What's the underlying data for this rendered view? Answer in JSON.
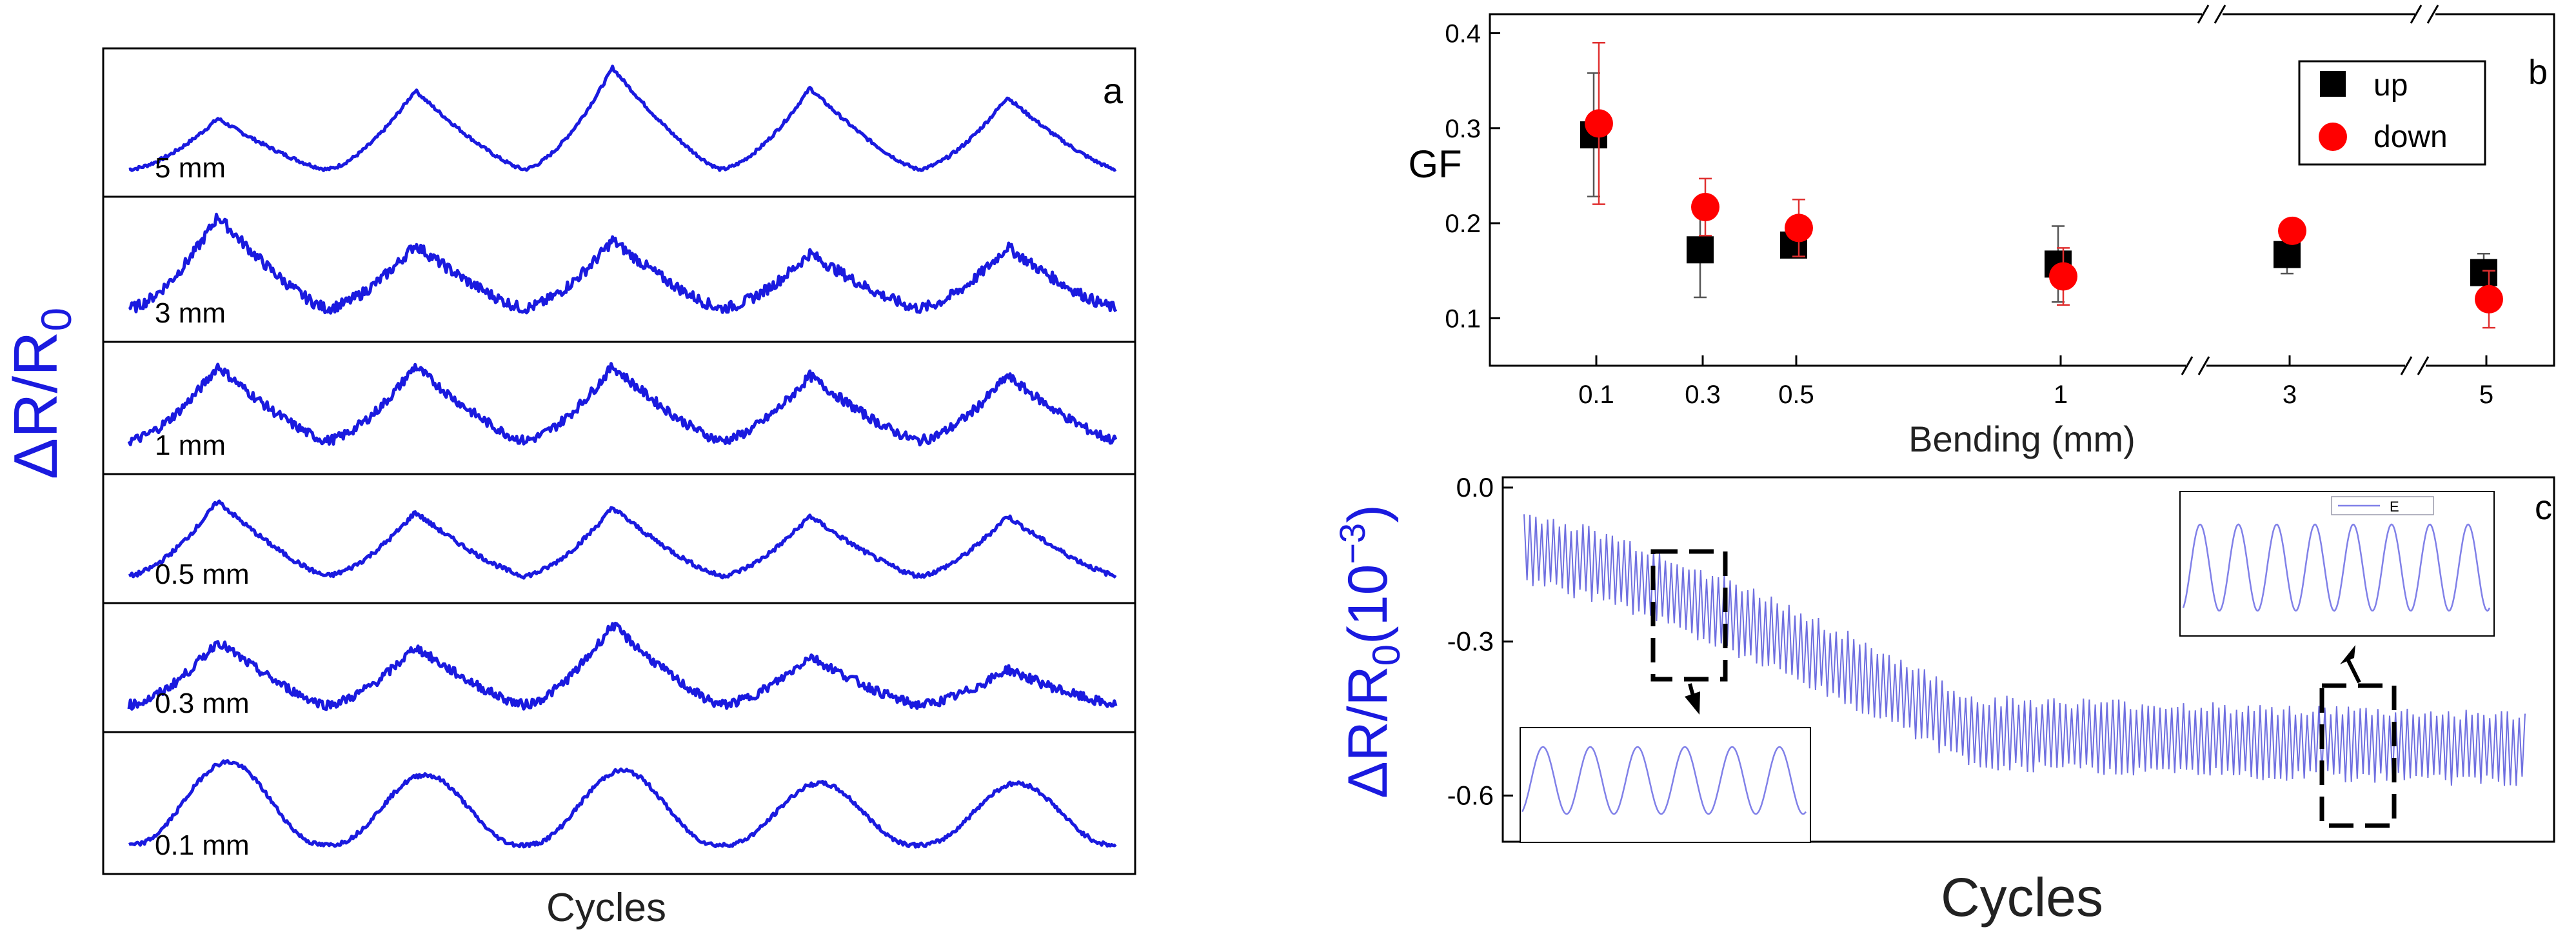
{
  "chart_data": [
    {
      "panel": "a",
      "type": "line",
      "panel_label": "a",
      "ylabel_main": "ΔR/R",
      "ylabel_sub": "0",
      "xlabel": "Cycles",
      "line_color": "#1a1adf",
      "series": [
        {
          "name": "5 mm",
          "peaks": [
            0.55,
            0.8,
            1.0,
            0.82,
            0.74
          ],
          "baseline": 0.1,
          "noise": 0.015,
          "shape": "sharp"
        },
        {
          "name": "3 mm",
          "peaks": [
            1.0,
            0.74,
            0.78,
            0.66,
            0.72
          ],
          "baseline": 0.16,
          "noise": 0.05,
          "shape": "sharp"
        },
        {
          "name": "1 mm",
          "peaks": [
            0.95,
            0.95,
            0.95,
            0.85,
            0.85
          ],
          "baseline": 0.18,
          "noise": 0.05,
          "shape": "sharp"
        },
        {
          "name": "0.5 mm",
          "peaks": [
            0.92,
            0.8,
            0.85,
            0.76,
            0.76
          ],
          "baseline": 0.12,
          "noise": 0.025,
          "shape": "sharp"
        },
        {
          "name": "0.3 mm",
          "peaks": [
            0.8,
            0.74,
            0.98,
            0.64,
            0.5
          ],
          "baseline": 0.12,
          "noise": 0.05,
          "shape": "sharp"
        },
        {
          "name": "0.1 mm",
          "peaks": [
            0.9,
            0.78,
            0.82,
            0.7,
            0.7
          ],
          "baseline": 0.12,
          "noise": 0.02,
          "shape": "round"
        }
      ]
    },
    {
      "panel": "b",
      "type": "scatter",
      "panel_label": "b",
      "ylabel": "GF",
      "xlabel": "Bending (mm)",
      "categories": [
        "0.1",
        "0.3",
        "0.5",
        "1",
        "3",
        "5"
      ],
      "yticks": [
        "0.1",
        "0.2",
        "0.3",
        "0.4"
      ],
      "ylim": [
        0.05,
        0.42
      ],
      "series": [
        {
          "name": "up",
          "marker": "square",
          "color": "#000000",
          "values": [
            0.293,
            0.172,
            0.177,
            0.157,
            0.167,
            0.148
          ],
          "errors": [
            0.065,
            0.05,
            0.01,
            0.04,
            0.02,
            0.02
          ]
        },
        {
          "name": "down",
          "marker": "circle",
          "color": "#ff0000",
          "values": [
            0.305,
            0.217,
            0.195,
            0.144,
            0.192,
            0.12
          ],
          "errors": [
            0.085,
            0.03,
            0.03,
            0.03,
            0.01,
            0.03
          ]
        }
      ],
      "axis_breaks": "between 0.5–1 region top, between 1–3, between 3–5"
    },
    {
      "panel": "c",
      "type": "line",
      "panel_label": "c",
      "ylabel_main": "ΔR/R",
      "ylabel_sub": "0",
      "ylabel_unit": "(10",
      "ylabel_exp": "−3",
      "ylabel_close": ")",
      "xlabel": "Cycles",
      "yticks": [
        "0.0",
        "-0.3",
        "-0.6"
      ],
      "ylim": [
        -0.69,
        0.02
      ],
      "cycles": 170,
      "start_mean": -0.12,
      "end_mean": -0.51,
      "amplitude": 0.15,
      "line_color": "#6f6fe0",
      "inset_legend": "E"
    }
  ]
}
